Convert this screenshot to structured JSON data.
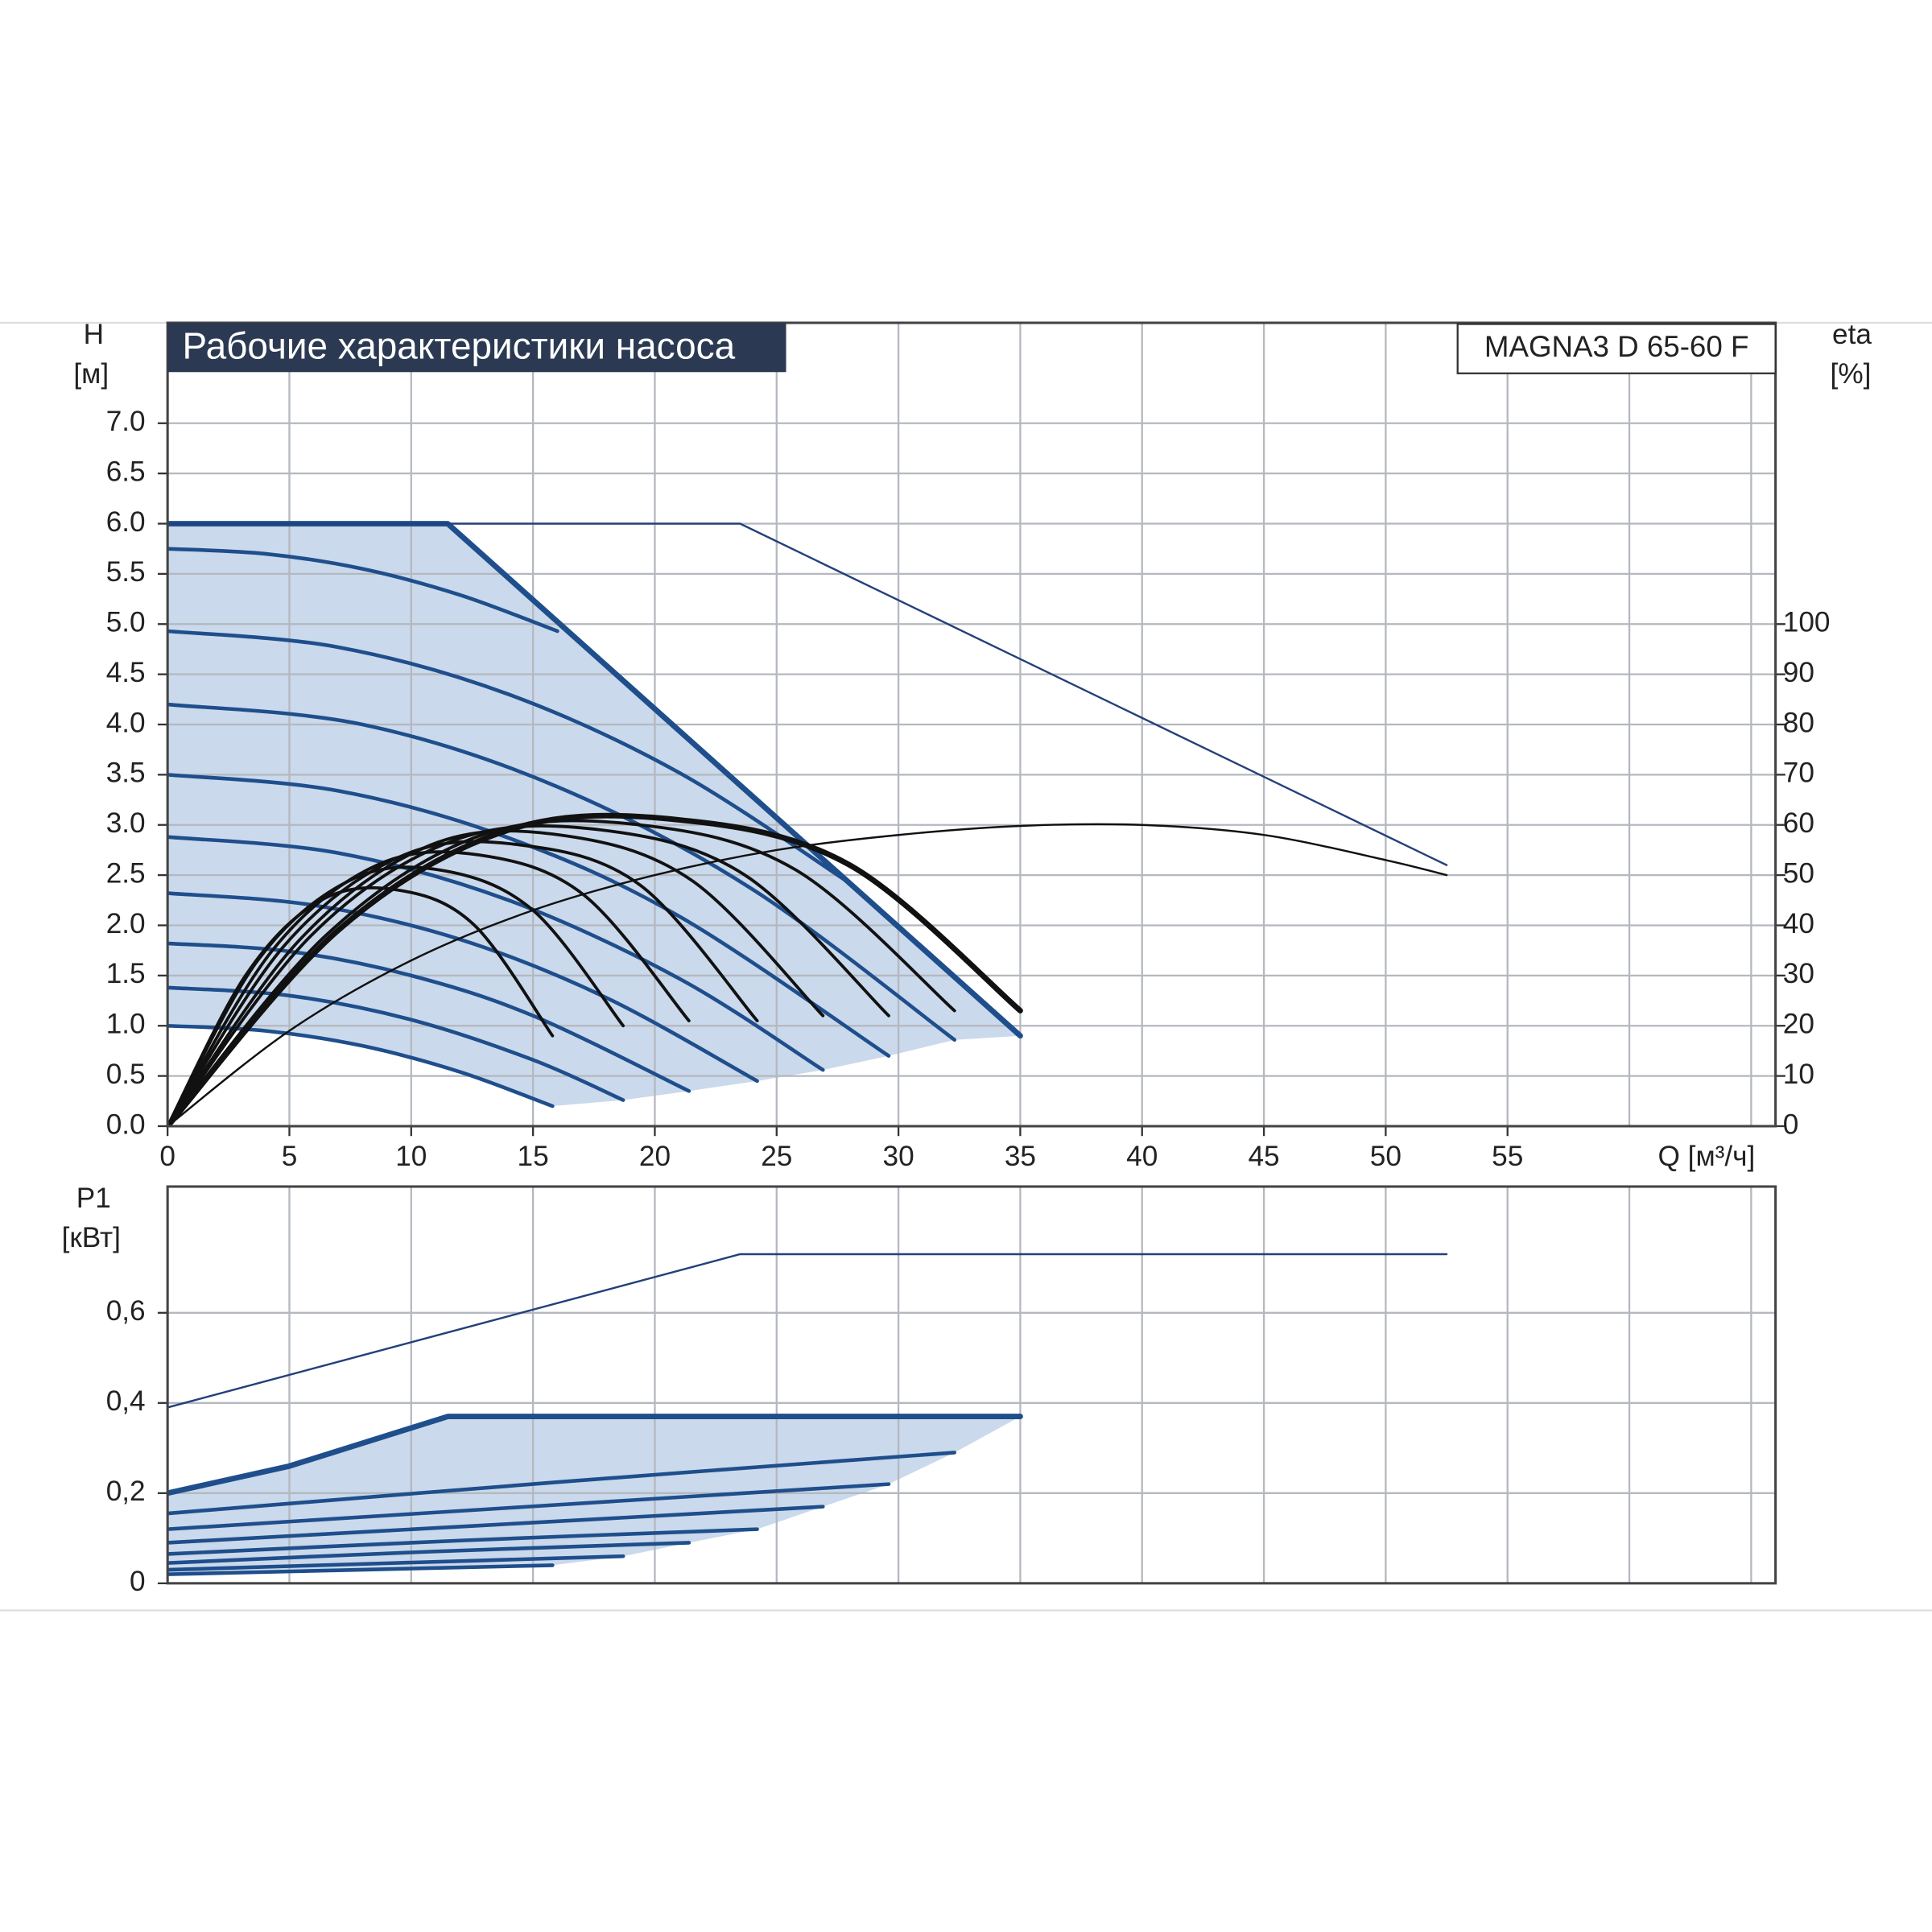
{
  "chart_data": [
    {
      "type": "line",
      "title": "Рабочие характеристики насоса",
      "model": "MAGNA3 D 65-60 F",
      "y_label": "H",
      "y_unit": "[м]",
      "y2_label": "eta",
      "y2_unit": "[%]",
      "x_label": "Q [м³/ч]",
      "xlim": [
        0,
        66
      ],
      "xticks": [
        0,
        5,
        10,
        15,
        20,
        25,
        30,
        35,
        40,
        45,
        50,
        55
      ],
      "xgrid": [
        5,
        10,
        15,
        20,
        25,
        30,
        35,
        40,
        45,
        50,
        55,
        60,
        65
      ],
      "ylim": [
        0,
        8
      ],
      "yticks": [
        {
          "value": 0,
          "label": "0.0"
        },
        0.5,
        {
          "value": 1,
          "label": "1.0"
        },
        1.5,
        {
          "value": 2,
          "label": "2.0"
        },
        2.5,
        {
          "value": 3,
          "label": "3.0"
        },
        3.5,
        {
          "value": 4,
          "label": "4.0"
        },
        4.5,
        {
          "value": 5,
          "label": "5.0"
        },
        5.5,
        {
          "value": 6,
          "label": "6.0"
        },
        6.5,
        {
          "value": 7,
          "label": "7.0"
        }
      ],
      "y2lim": [
        0,
        160
      ],
      "y2ticks": [
        0,
        10,
        20,
        30,
        40,
        50,
        60,
        70,
        80,
        90,
        100
      ],
      "grid": true,
      "area_color": "#cad9eb",
      "series": [
        {
          "x": [
            0,
            11.5,
            35
          ],
          "values": [
            6,
            6,
            0.9
          ],
          "color": "#1f4e8c",
          "line_width": 4.5,
          "line_shape": "linear"
        },
        {
          "x": [
            0,
            23.5,
            52.5
          ],
          "values": [
            6,
            6,
            2.6
          ],
          "color": "#24407a",
          "line_width": 1.6,
          "line_shape": "linear"
        },
        {
          "x": [
            0,
            4,
            8,
            12,
            15.8
          ],
          "values": [
            1.0,
            0.95,
            0.8,
            0.54,
            0.2
          ],
          "color": "#1f4e8c",
          "line_width": 3,
          "line_shape": "spline"
        },
        {
          "x": [
            0,
            5,
            10,
            15,
            18.7
          ],
          "values": [
            1.38,
            1.3,
            1.06,
            0.66,
            0.26
          ],
          "color": "#1f4e8c",
          "line_width": 3,
          "line_shape": "spline"
        },
        {
          "x": [
            0,
            5,
            10,
            15,
            21.4
          ],
          "values": [
            1.82,
            1.74,
            1.5,
            1.1,
            0.35
          ],
          "color": "#1f4e8c",
          "line_width": 3,
          "line_shape": "spline"
        },
        {
          "x": [
            0,
            6,
            12,
            18,
            24.2
          ],
          "values": [
            2.32,
            2.2,
            1.86,
            1.28,
            0.45
          ],
          "color": "#1f4e8c",
          "line_width": 3,
          "line_shape": "spline"
        },
        {
          "x": [
            0,
            7,
            14,
            21,
            26.9
          ],
          "values": [
            2.88,
            2.72,
            2.25,
            1.47,
            0.56
          ],
          "color": "#1f4e8c",
          "line_width": 3,
          "line_shape": "spline"
        },
        {
          "x": [
            0,
            7,
            14,
            21,
            29.6
          ],
          "values": [
            3.5,
            3.34,
            2.87,
            2.09,
            0.7
          ],
          "color": "#1f4e8c",
          "line_width": 3,
          "line_shape": "spline"
        },
        {
          "x": [
            0,
            8,
            16,
            24,
            32.3
          ],
          "values": [
            4.2,
            4.0,
            3.38,
            2.36,
            0.86
          ],
          "color": "#1f4e8c",
          "line_width": 3,
          "line_shape": "spline"
        },
        {
          "x": [
            0,
            7,
            14,
            21,
            28
          ],
          "values": [
            4.93,
            4.77,
            4.3,
            3.52,
            2.42
          ],
          "color": "#1f4e8c",
          "line_width": 3,
          "line_shape": "spline"
        },
        {
          "x": [
            0,
            4,
            8,
            12,
            16
          ],
          "values": [
            5.75,
            5.7,
            5.55,
            5.29,
            4.93
          ],
          "color": "#1f4e8c",
          "line_width": 3,
          "line_shape": "spline"
        },
        {
          "axis": "y2",
          "x": [
            0,
            3.2,
            6.3,
            9.5,
            12.6,
            15.8
          ],
          "values": [
            0,
            30,
            45,
            47,
            40,
            18
          ],
          "color": "#111111",
          "line_width": 2.5,
          "line_shape": "spline"
        },
        {
          "axis": "y2",
          "x": [
            0,
            3.7,
            7.5,
            11.2,
            15,
            18.7
          ],
          "values": [
            0,
            33,
            49,
            51,
            43,
            20
          ],
          "color": "#111111",
          "line_width": 2.5,
          "line_shape": "spline"
        },
        {
          "axis": "y2",
          "x": [
            0,
            4.3,
            8.6,
            12.8,
            17.1,
            21.4
          ],
          "values": [
            0,
            35,
            52,
            54,
            46,
            21
          ],
          "color": "#111111",
          "line_width": 2.5,
          "line_shape": "spline"
        },
        {
          "axis": "y2",
          "x": [
            0,
            4.8,
            9.7,
            14.5,
            19.4,
            24.2
          ],
          "values": [
            0,
            36,
            54,
            56,
            48,
            21
          ],
          "color": "#111111",
          "line_width": 2.5,
          "line_shape": "spline"
        },
        {
          "axis": "y2",
          "x": [
            0,
            5.4,
            10.8,
            16.1,
            21.5,
            26.9
          ],
          "values": [
            0,
            37,
            56,
            58,
            49,
            22
          ],
          "color": "#111111",
          "line_width": 2.5,
          "line_shape": "spline"
        },
        {
          "axis": "y2",
          "x": [
            0,
            5.9,
            11.8,
            17.8,
            23.7,
            29.6
          ],
          "values": [
            0,
            38,
            57,
            59,
            50,
            22
          ],
          "color": "#111111",
          "line_width": 2.5,
          "line_shape": "spline"
        },
        {
          "axis": "y2",
          "x": [
            0,
            6.5,
            12.9,
            19.4,
            25.8,
            32.3
          ],
          "values": [
            0,
            38,
            58,
            60,
            51,
            23
          ],
          "color": "#111111",
          "line_width": 2.5,
          "line_shape": "spline"
        },
        {
          "axis": "y2",
          "x": [
            0,
            7,
            14,
            21,
            28,
            35
          ],
          "values": [
            0,
            39,
            59,
            61,
            52,
            23
          ],
          "color": "#111111",
          "line_width": 4.5,
          "line_shape": "spline"
        },
        {
          "axis": "y2",
          "x": [
            0,
            5,
            10,
            15,
            20,
            25,
            30,
            35,
            40,
            45,
            50,
            52.5
          ],
          "values": [
            0,
            19,
            33,
            43,
            50,
            55,
            58,
            59.8,
            60,
            58,
            53,
            50
          ],
          "color": "#111111",
          "line_width": 1.6,
          "line_shape": "spline"
        }
      ]
    },
    {
      "type": "line",
      "y_label": "P1",
      "y_unit": "[кВт]",
      "xlim": [
        0,
        66
      ],
      "xgrid": [
        5,
        10,
        15,
        20,
        25,
        30,
        35,
        40,
        45,
        50,
        55,
        60,
        65
      ],
      "ylim": [
        0,
        0.88
      ],
      "yticks": [
        0,
        {
          "value": 0.2,
          "label": "0,2"
        },
        {
          "value": 0.4,
          "label": "0,4"
        },
        {
          "value": 0.6,
          "label": "0,6"
        }
      ],
      "grid": true,
      "area_color": "#cad9eb",
      "series": [
        {
          "x": [
            0,
            5,
            11.5,
            35
          ],
          "values": [
            0.2,
            0.26,
            0.37,
            0.37
          ],
          "color": "#1f4e8c",
          "line_width": 4.5,
          "line_shape": "linear"
        },
        {
          "x": [
            0,
            23.5,
            52.5
          ],
          "values": [
            0.39,
            0.73,
            0.73
          ],
          "color": "#24407a",
          "line_width": 1.6,
          "line_shape": "linear"
        },
        {
          "x": [
            0,
            7.9,
            15.8
          ],
          "values": [
            0.02,
            0.03,
            0.04
          ],
          "color": "#1f4e8c",
          "line_width": 3,
          "line_shape": "spline"
        },
        {
          "x": [
            0,
            9.35,
            18.7
          ],
          "values": [
            0.03,
            0.045,
            0.06
          ],
          "color": "#1f4e8c",
          "line_width": 3,
          "line_shape": "spline"
        },
        {
          "x": [
            0,
            10.7,
            21.4
          ],
          "values": [
            0.045,
            0.07,
            0.09
          ],
          "color": "#1f4e8c",
          "line_width": 3,
          "line_shape": "spline"
        },
        {
          "x": [
            0,
            12.1,
            24.2
          ],
          "values": [
            0.065,
            0.095,
            0.12
          ],
          "color": "#1f4e8c",
          "line_width": 3,
          "line_shape": "spline"
        },
        {
          "x": [
            0,
            13.45,
            26.9
          ],
          "values": [
            0.09,
            0.13,
            0.17
          ],
          "color": "#1f4e8c",
          "line_width": 3,
          "line_shape": "spline"
        },
        {
          "x": [
            0,
            14.8,
            29.6
          ],
          "values": [
            0.12,
            0.17,
            0.22
          ],
          "color": "#1f4e8c",
          "line_width": 3,
          "line_shape": "spline"
        },
        {
          "x": [
            0,
            16.15,
            32.3
          ],
          "values": [
            0.155,
            0.225,
            0.29
          ],
          "color": "#1f4e8c",
          "line_width": 3,
          "line_shape": "spline"
        }
      ]
    }
  ]
}
